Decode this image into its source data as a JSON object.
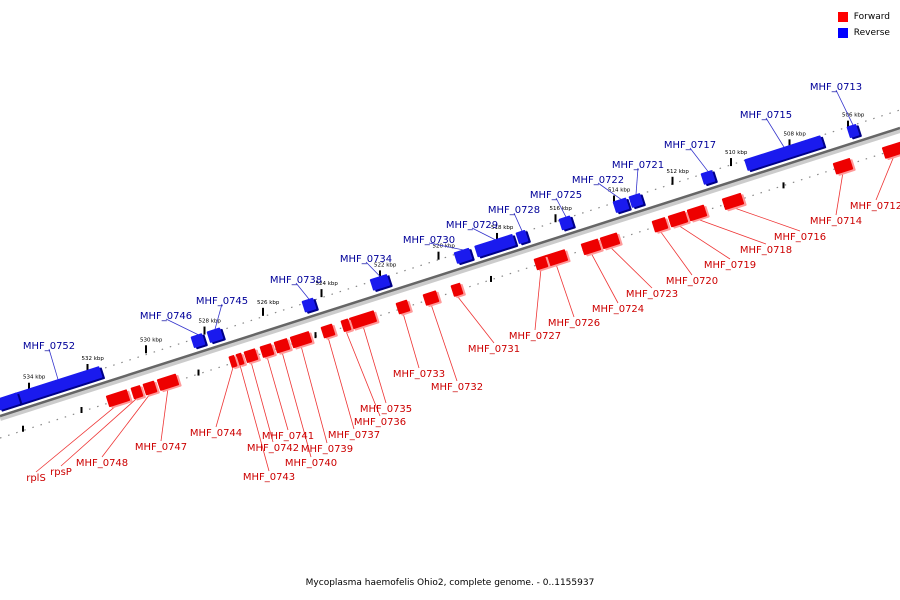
{
  "legend": {
    "items": [
      {
        "label": "Forward",
        "color": "#ff0000"
      },
      {
        "label": "Reverse",
        "color": "#0000ff"
      }
    ]
  },
  "caption": "Mycoplasma haemofelis Ohio2, complete genome. - 0..1155937",
  "colors": {
    "forward": "#ee0000",
    "reverse": "#1a1aee",
    "forward_label": "#cc0000",
    "reverse_label": "#000099",
    "backbone": "#666666"
  },
  "scale": {
    "ticks": [
      "506 kbp",
      "508 kbp",
      "510 kbp",
      "512 kbp",
      "514 kbp",
      "516 kbp",
      "518 kbp",
      "520 kbp",
      "522 kbp",
      "524 kbp",
      "526 kbp",
      "528 kbp",
      "530 kbp",
      "532 kbp",
      "534 kbp"
    ]
  },
  "reverse_genes": [
    "MHF_0713",
    "MHF_0715",
    "MHF_0717",
    "MHF_0721",
    "MHF_0722",
    "MHF_0725",
    "MHF_0728",
    "MHF_0729",
    "MHF_0730",
    "MHF_0734",
    "MHF_0738",
    "MHF_0745",
    "MHF_0746",
    "MHF_0752"
  ],
  "forward_genes": [
    "MHF_0712",
    "MHF_0714",
    "MHF_0716",
    "MHF_0718",
    "MHF_0719",
    "MHF_0720",
    "MHF_0723",
    "MHF_0724",
    "MHF_0726",
    "MHF_0727",
    "MHF_0731",
    "MHF_0732",
    "MHF_0733",
    "MHF_0735",
    "MHF_0736",
    "MHF_0737",
    "MHF_0739",
    "MHF_0740",
    "MHF_0741",
    "MHF_0742",
    "MHF_0743",
    "MHF_0744",
    "MHF_0747",
    "MHF_0748",
    "rpsP",
    "rplS"
  ]
}
